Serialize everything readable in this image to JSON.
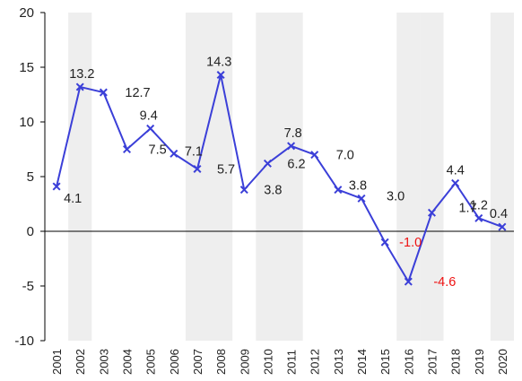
{
  "chart_data": {
    "type": "line",
    "title": "",
    "xlabel": "",
    "ylabel": "",
    "ylim": [
      -10,
      20
    ],
    "yticks": [
      -10,
      -5,
      0,
      5,
      10,
      15,
      20
    ],
    "grid": false,
    "legend": "none",
    "categories": [
      "2001",
      "2002",
      "2003",
      "2004",
      "2005",
      "2006",
      "2007",
      "2008",
      "2009",
      "2010",
      "2011",
      "2012",
      "2013",
      "2014",
      "2015",
      "2016",
      "2017",
      "2018",
      "2019",
      "2020"
    ],
    "series": [
      {
        "values": [
          4.1,
          13.2,
          12.7,
          7.5,
          9.4,
          7.1,
          5.7,
          14.3,
          3.8,
          6.2,
          7.8,
          7.0,
          3.8,
          3.0,
          -1.0,
          -4.6,
          1.7,
          4.4,
          1.2,
          0.4
        ],
        "labels": [
          "4.1",
          "13.2",
          "12.7",
          "7.5",
          "9.4",
          "7.1",
          "5.7",
          "14.3",
          "3.8",
          "6.2",
          "7.8",
          "7.0",
          "3.8",
          "3.0",
          "-1.0",
          "-4.6",
          "1.7",
          "4.4",
          "1.2",
          "0.4"
        ],
        "color": "#3b3fd8",
        "marker": "x"
      }
    ],
    "shaded_years": [
      "2002",
      "2007",
      "2008",
      "2010",
      "2011",
      "2016",
      "2017",
      "2020"
    ],
    "colors": {
      "shade": "#eeeeee",
      "negative_label": "#ee1111",
      "axis": "#000000"
    }
  }
}
